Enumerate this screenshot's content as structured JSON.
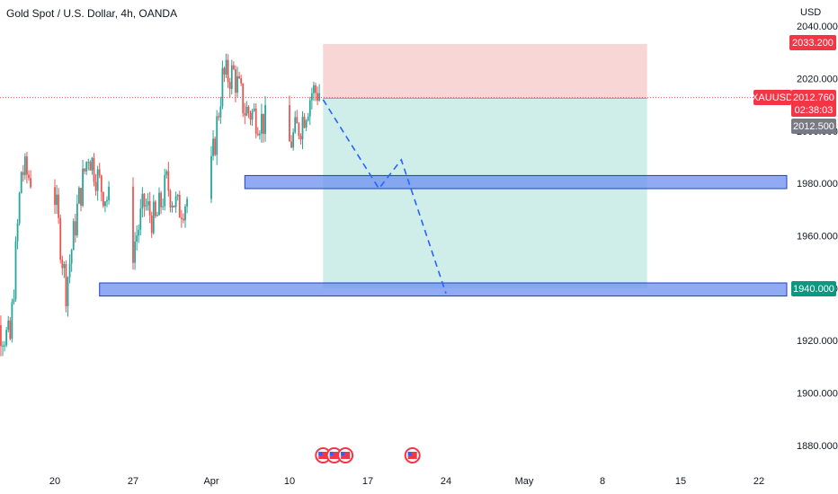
{
  "header": {
    "title": "Gold Spot / U.S. Dollar, 4h, OANDA",
    "currency": "USD"
  },
  "price_tags": {
    "target_high": "2033.200",
    "symbol": "XAUUSD",
    "last_price": "2012.760",
    "countdown": "02:38:03",
    "entry": "2012.500",
    "support_low": "1940.000"
  },
  "colors": {
    "up": "#26a69a",
    "down": "#ef5350",
    "stop_zone": "#f9d6d6",
    "profit_zone": "#cfeeea",
    "support_box": "#6b8ff0",
    "projection": "#2962ff",
    "target_tag": "#f23645",
    "support_tag": "#089981",
    "entry_tag": "#787b86"
  },
  "chart_data": {
    "type": "candlestick",
    "title": "Gold Spot / U.S. Dollar, 4h, OANDA",
    "y_axis_label": "USD",
    "ylim": [
      1876,
      2047
    ],
    "y_ticks": [
      "1880.000",
      "1900.000",
      "1920.000",
      "1940.000",
      "1960.000",
      "1980.000",
      "2000.000",
      "2020.000",
      "2040.000"
    ],
    "y_tick_values": [
      1880,
      1900,
      1920,
      1940,
      1960,
      1980,
      2000,
      2020,
      2040
    ],
    "x_ticks": [
      "20",
      "27",
      "Apr",
      "10",
      "17",
      "24",
      "May",
      "8",
      "15",
      "22"
    ],
    "x_tick_dates": [
      "2023-03-20",
      "2023-03-27",
      "2023-04-03",
      "2023-04-10",
      "2023-04-17",
      "2023-04-24",
      "2023-05-01",
      "2023-05-08",
      "2023-05-15",
      "2023-05-22"
    ],
    "x_range": [
      "2023-03-13",
      "2023-05-25"
    ],
    "last_price": 2012.76,
    "approximate_closes": [
      {
        "date": "2023-03-14",
        "close": 1905
      },
      {
        "date": "2023-03-15",
        "close": 1925
      },
      {
        "date": "2023-03-16",
        "close": 1920
      },
      {
        "date": "2023-03-17",
        "close": 1985
      },
      {
        "date": "2023-03-20",
        "close": 1975
      },
      {
        "date": "2023-03-21",
        "close": 1940
      },
      {
        "date": "2023-03-22",
        "close": 1970
      },
      {
        "date": "2023-03-23",
        "close": 1992
      },
      {
        "date": "2023-03-24",
        "close": 1980
      },
      {
        "date": "2023-03-27",
        "close": 1955
      },
      {
        "date": "2023-03-28",
        "close": 1972
      },
      {
        "date": "2023-03-29",
        "close": 1965
      },
      {
        "date": "2023-03-30",
        "close": 1980
      },
      {
        "date": "2023-03-31",
        "close": 1970
      },
      {
        "date": "2023-04-03",
        "close": 1985
      },
      {
        "date": "2023-04-04",
        "close": 2020
      },
      {
        "date": "2023-04-05",
        "close": 2022
      },
      {
        "date": "2023-04-06",
        "close": 2008
      },
      {
        "date": "2023-04-07",
        "close": 2006
      },
      {
        "date": "2023-04-10",
        "close": 1995
      },
      {
        "date": "2023-04-11",
        "close": 2003
      },
      {
        "date": "2023-04-12",
        "close": 2015
      }
    ],
    "annotations": {
      "stop_zone": {
        "from": 2012.5,
        "to": 2033.2,
        "start": "2023-04-13",
        "end": "2023-05-12"
      },
      "profit_zone": {
        "from": 1940.0,
        "to": 2012.5,
        "start": "2023-04-13",
        "end": "2023-05-12"
      },
      "support_boxes": [
        {
          "from": 1978,
          "to": 1983,
          "start": "2023-04-06",
          "end": "2023-05-25"
        },
        {
          "from": 1937,
          "to": 1942,
          "start": "2023-03-24",
          "end": "2023-05-25"
        }
      ],
      "projection_path": [
        {
          "date": "2023-04-13",
          "price": 2012
        },
        {
          "date": "2023-04-18",
          "price": 1978
        },
        {
          "date": "2023-04-20",
          "price": 1989
        },
        {
          "date": "2023-04-24",
          "price": 1938
        }
      ],
      "event_markers": [
        "2023-04-13",
        "2023-04-14",
        "2023-04-15",
        "2023-04-21"
      ]
    }
  }
}
